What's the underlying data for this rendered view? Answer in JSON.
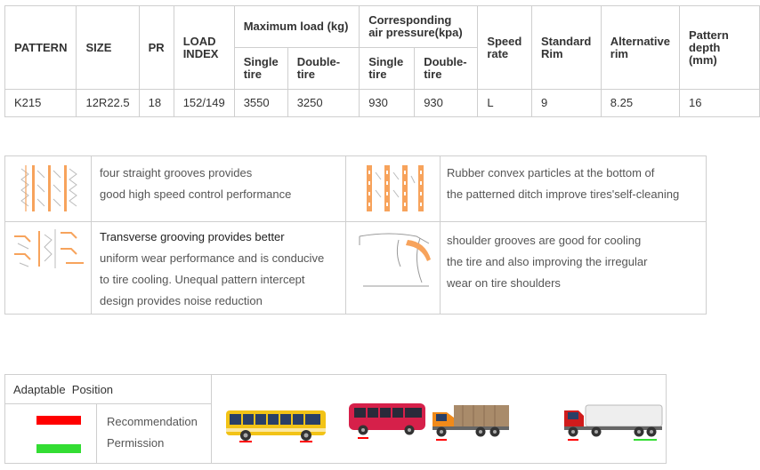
{
  "spec_table": {
    "headers": {
      "pattern": "PATTERN",
      "size": "SIZE",
      "pr": "PR",
      "load_index": "LOAD INDEX",
      "max_load": "Maximum load (kg)",
      "air_pressure": "Corresponding air pressure(kpa)",
      "speed_rate": "Speed rate",
      "standard_rim": "Standard Rim",
      "alternative_rim": "Alternative rim",
      "pattern_depth": "Pattern depth  (mm)",
      "single_tire": "Single tire",
      "double_tire": "Double-tire",
      "single_tire_2": "Single tire",
      "double_tire_2": "Double-tire"
    },
    "row": {
      "pattern": "K215",
      "size": "12R22.5",
      "pr": "18",
      "load_index": "152/149",
      "max_load_single": "3550",
      "max_load_double": "3250",
      "pressure_single": "930",
      "pressure_double": "930",
      "speed_rate": "L",
      "standard_rim": "9",
      "alternative_rim": "8.25",
      "pattern_depth": "16"
    }
  },
  "features": [
    {
      "lines": [
        "four straight grooves provides",
        "good high speed control performance"
      ],
      "icon": "straight-grooves-icon"
    },
    {
      "lines": [
        "Rubber convex particles at the bottom of",
        "the patterned ditch improve tires'self-cleaning"
      ],
      "icon": "convex-particles-icon"
    },
    {
      "lead": "Transverse grooving provides better",
      "lines": [
        "uniform wear performance and is conducive",
        "to tire cooling. Unequal pattern intercept",
        "design provides noise reduction"
      ],
      "icon": "transverse-grooving-icon"
    },
    {
      "lines": [
        "shoulder grooves are good for cooling",
        "the tire and also improving the irregular",
        "wear on tire shoulders"
      ],
      "icon": "shoulder-grooves-icon"
    }
  ],
  "adaptable": {
    "title": "Adaptable  Position",
    "recommendation": "Recommendation",
    "permission": "Permission",
    "colors": {
      "recommendation": "#ff0000",
      "permission": "#33dd33"
    },
    "vehicles": [
      "city-bus-icon",
      "coach-bus-icon",
      "dump-truck-icon",
      "trailer-truck-icon"
    ]
  },
  "colors": {
    "accent_orange": "#f7a35c",
    "border": "#cfcfcf"
  }
}
